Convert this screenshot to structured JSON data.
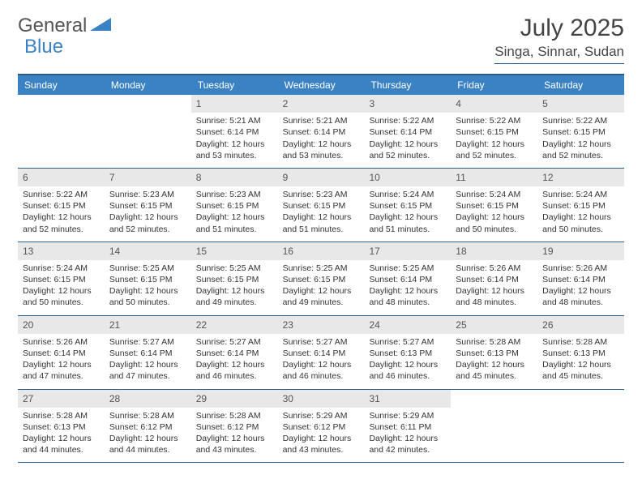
{
  "logo": {
    "text1": "General",
    "text2": "Blue"
  },
  "title": "July 2025",
  "location": "Singa, Sinnar, Sudan",
  "colors": {
    "header_bg": "#3b82c4",
    "border": "#2b5b8a",
    "daynum_bg": "#e8e8e8",
    "text": "#333333",
    "logo_gray": "#555555",
    "logo_blue": "#3b82c4"
  },
  "day_headers": [
    "Sunday",
    "Monday",
    "Tuesday",
    "Wednesday",
    "Thursday",
    "Friday",
    "Saturday"
  ],
  "weeks": [
    [
      {
        "n": "",
        "sr": "",
        "ss": "",
        "dl": ""
      },
      {
        "n": "",
        "sr": "",
        "ss": "",
        "dl": ""
      },
      {
        "n": "1",
        "sr": "5:21 AM",
        "ss": "6:14 PM",
        "dl": "12 hours and 53 minutes."
      },
      {
        "n": "2",
        "sr": "5:21 AM",
        "ss": "6:14 PM",
        "dl": "12 hours and 53 minutes."
      },
      {
        "n": "3",
        "sr": "5:22 AM",
        "ss": "6:14 PM",
        "dl": "12 hours and 52 minutes."
      },
      {
        "n": "4",
        "sr": "5:22 AM",
        "ss": "6:15 PM",
        "dl": "12 hours and 52 minutes."
      },
      {
        "n": "5",
        "sr": "5:22 AM",
        "ss": "6:15 PM",
        "dl": "12 hours and 52 minutes."
      }
    ],
    [
      {
        "n": "6",
        "sr": "5:22 AM",
        "ss": "6:15 PM",
        "dl": "12 hours and 52 minutes."
      },
      {
        "n": "7",
        "sr": "5:23 AM",
        "ss": "6:15 PM",
        "dl": "12 hours and 52 minutes."
      },
      {
        "n": "8",
        "sr": "5:23 AM",
        "ss": "6:15 PM",
        "dl": "12 hours and 51 minutes."
      },
      {
        "n": "9",
        "sr": "5:23 AM",
        "ss": "6:15 PM",
        "dl": "12 hours and 51 minutes."
      },
      {
        "n": "10",
        "sr": "5:24 AM",
        "ss": "6:15 PM",
        "dl": "12 hours and 51 minutes."
      },
      {
        "n": "11",
        "sr": "5:24 AM",
        "ss": "6:15 PM",
        "dl": "12 hours and 50 minutes."
      },
      {
        "n": "12",
        "sr": "5:24 AM",
        "ss": "6:15 PM",
        "dl": "12 hours and 50 minutes."
      }
    ],
    [
      {
        "n": "13",
        "sr": "5:24 AM",
        "ss": "6:15 PM",
        "dl": "12 hours and 50 minutes."
      },
      {
        "n": "14",
        "sr": "5:25 AM",
        "ss": "6:15 PM",
        "dl": "12 hours and 50 minutes."
      },
      {
        "n": "15",
        "sr": "5:25 AM",
        "ss": "6:15 PM",
        "dl": "12 hours and 49 minutes."
      },
      {
        "n": "16",
        "sr": "5:25 AM",
        "ss": "6:15 PM",
        "dl": "12 hours and 49 minutes."
      },
      {
        "n": "17",
        "sr": "5:25 AM",
        "ss": "6:14 PM",
        "dl": "12 hours and 48 minutes."
      },
      {
        "n": "18",
        "sr": "5:26 AM",
        "ss": "6:14 PM",
        "dl": "12 hours and 48 minutes."
      },
      {
        "n": "19",
        "sr": "5:26 AM",
        "ss": "6:14 PM",
        "dl": "12 hours and 48 minutes."
      }
    ],
    [
      {
        "n": "20",
        "sr": "5:26 AM",
        "ss": "6:14 PM",
        "dl": "12 hours and 47 minutes."
      },
      {
        "n": "21",
        "sr": "5:27 AM",
        "ss": "6:14 PM",
        "dl": "12 hours and 47 minutes."
      },
      {
        "n": "22",
        "sr": "5:27 AM",
        "ss": "6:14 PM",
        "dl": "12 hours and 46 minutes."
      },
      {
        "n": "23",
        "sr": "5:27 AM",
        "ss": "6:14 PM",
        "dl": "12 hours and 46 minutes."
      },
      {
        "n": "24",
        "sr": "5:27 AM",
        "ss": "6:13 PM",
        "dl": "12 hours and 46 minutes."
      },
      {
        "n": "25",
        "sr": "5:28 AM",
        "ss": "6:13 PM",
        "dl": "12 hours and 45 minutes."
      },
      {
        "n": "26",
        "sr": "5:28 AM",
        "ss": "6:13 PM",
        "dl": "12 hours and 45 minutes."
      }
    ],
    [
      {
        "n": "27",
        "sr": "5:28 AM",
        "ss": "6:13 PM",
        "dl": "12 hours and 44 minutes."
      },
      {
        "n": "28",
        "sr": "5:28 AM",
        "ss": "6:12 PM",
        "dl": "12 hours and 44 minutes."
      },
      {
        "n": "29",
        "sr": "5:28 AM",
        "ss": "6:12 PM",
        "dl": "12 hours and 43 minutes."
      },
      {
        "n": "30",
        "sr": "5:29 AM",
        "ss": "6:12 PM",
        "dl": "12 hours and 43 minutes."
      },
      {
        "n": "31",
        "sr": "5:29 AM",
        "ss": "6:11 PM",
        "dl": "12 hours and 42 minutes."
      },
      {
        "n": "",
        "sr": "",
        "ss": "",
        "dl": ""
      },
      {
        "n": "",
        "sr": "",
        "ss": "",
        "dl": ""
      }
    ]
  ],
  "labels": {
    "sunrise": "Sunrise:",
    "sunset": "Sunset:",
    "daylight": "Daylight:"
  }
}
